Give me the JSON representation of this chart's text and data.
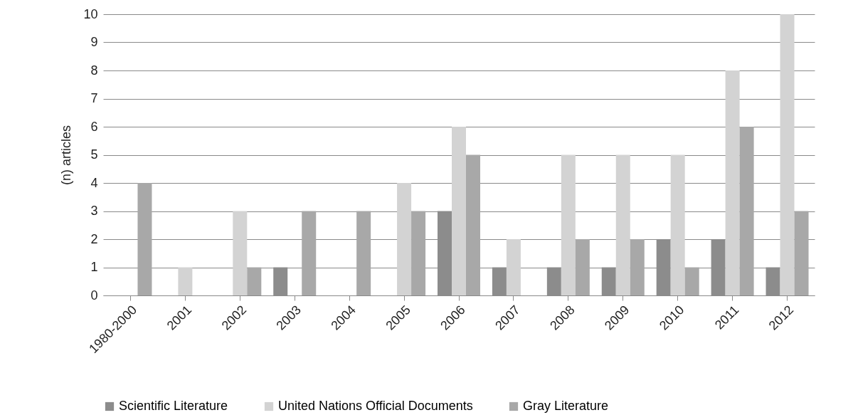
{
  "chart_data": {
    "type": "bar",
    "ylabel": "(n) articles",
    "categories": [
      "1980-2000",
      "2001",
      "2002",
      "2003",
      "2004",
      "2005",
      "2006",
      "2007",
      "2008",
      "2009",
      "2010",
      "2011",
      "2012"
    ],
    "series": [
      {
        "name": "Scientific Literature",
        "color": "#8c8c8c",
        "values": [
          0,
          0,
          0,
          1,
          0,
          0,
          3,
          1,
          1,
          1,
          2,
          2,
          1
        ]
      },
      {
        "name": "United Nations Official Documents",
        "color": "#d3d3d3",
        "values": [
          0,
          1,
          3,
          0,
          0,
          4,
          6,
          2,
          5,
          5,
          5,
          8,
          10
        ]
      },
      {
        "name": "Gray Literature",
        "color": "#a8a8a8",
        "values": [
          4,
          0,
          1,
          3,
          3,
          3,
          5,
          0,
          2,
          2,
          1,
          6,
          3
        ]
      }
    ],
    "ylim": [
      0,
      10
    ],
    "yticks": [
      0,
      1,
      2,
      3,
      4,
      5,
      6,
      7,
      8,
      9,
      10
    ],
    "grid": "y",
    "legend": "bottom"
  }
}
